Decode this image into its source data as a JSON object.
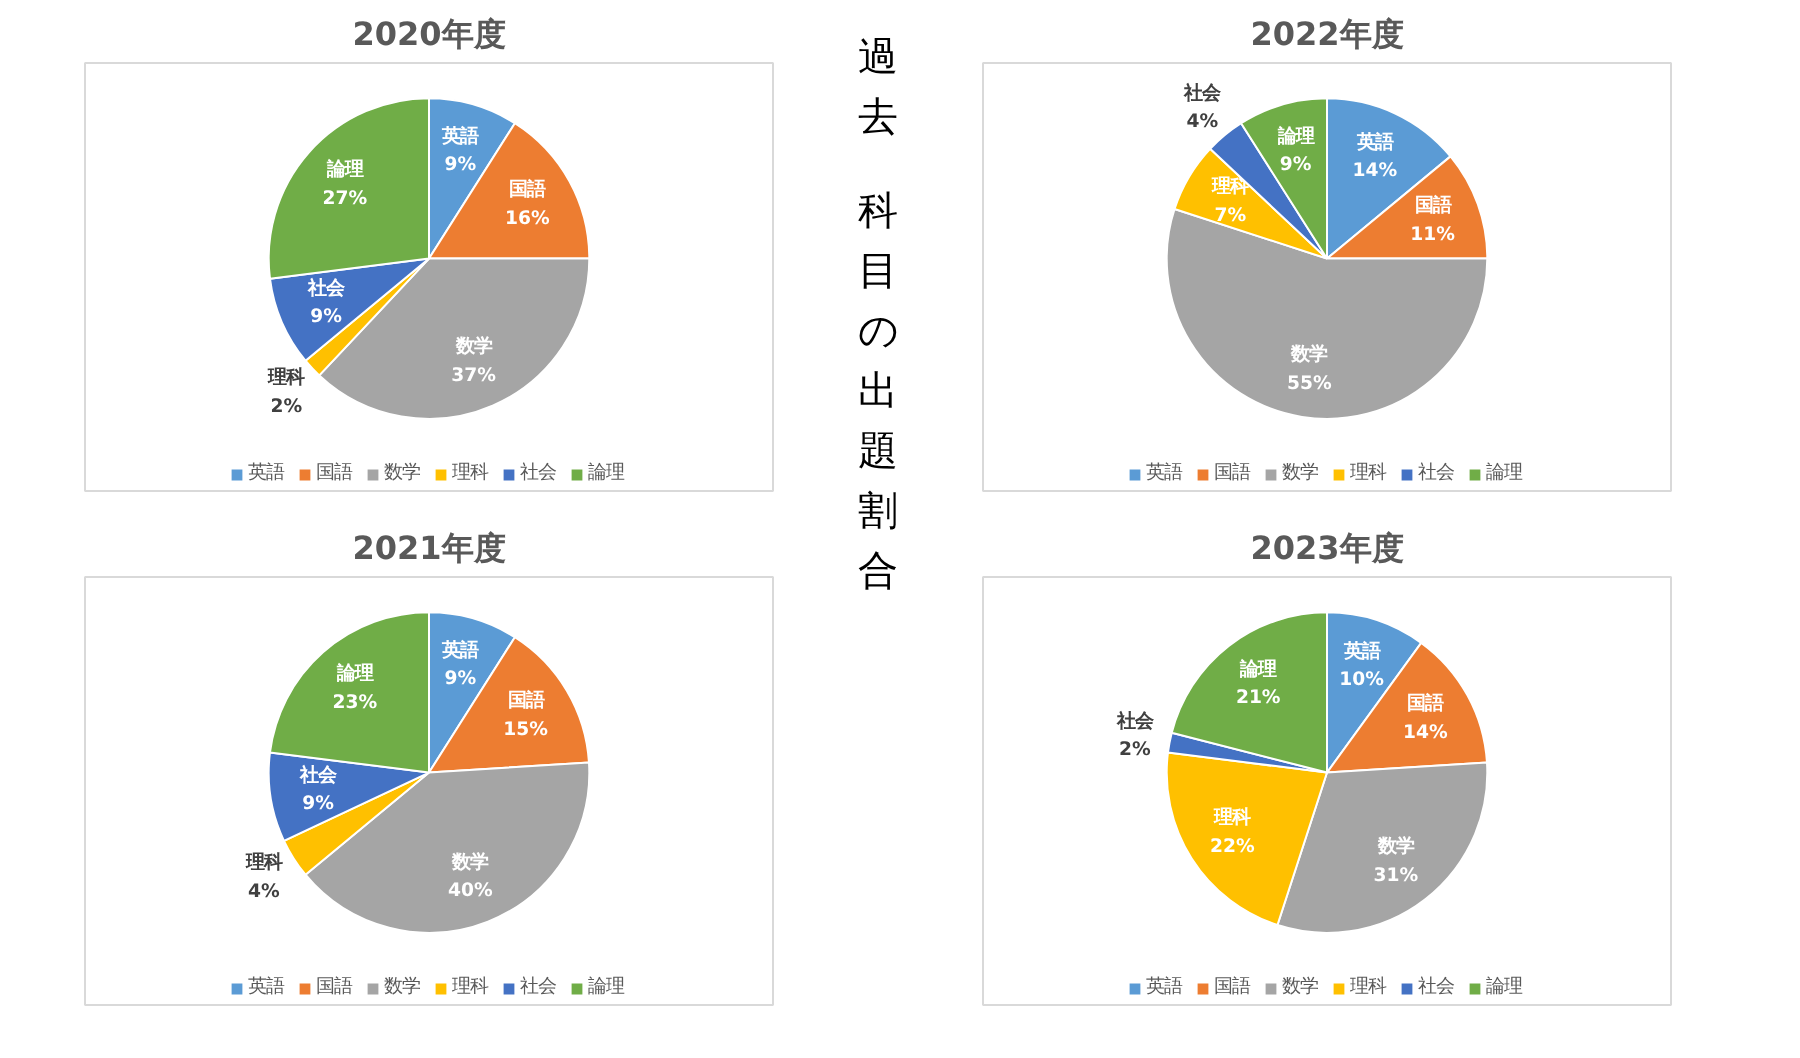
{
  "chart_data": [
    {
      "type": "pie",
      "title": "2020年度",
      "categories": [
        "英語",
        "国語",
        "数学",
        "理科",
        "社会",
        "論理"
      ],
      "values": [
        9,
        16,
        37,
        2,
        9,
        27
      ],
      "value_labels": [
        "9%",
        "16%",
        "37%",
        "2%",
        "9%",
        "27%"
      ],
      "colors": [
        "#5b9bd5",
        "#ed7d31",
        "#a5a5a5",
        "#ffc000",
        "#4472c4",
        "#70ad47"
      ],
      "legend": "bottom"
    },
    {
      "type": "other",
      "title": "過去",
      "subtitle": "科目の出題割合"
    },
    {
      "type": "pie",
      "title": "2022年度",
      "categories": [
        "英語",
        "国語",
        "数学",
        "理科",
        "社会",
        "論理"
      ],
      "values": [
        14,
        11,
        55,
        7,
        4,
        9
      ],
      "value_labels": [
        "14%",
        "11%",
        "55%",
        "7%",
        "4%",
        "9%"
      ],
      "colors": [
        "#5b9bd5",
        "#ed7d31",
        "#a5a5a5",
        "#ffc000",
        "#4472c4",
        "#70ad47"
      ],
      "legend": "bottom"
    },
    {
      "type": "pie",
      "title": "2021年度",
      "categories": [
        "英語",
        "国語",
        "数学",
        "理科",
        "社会",
        "論理"
      ],
      "values": [
        9,
        15,
        40,
        4,
        9,
        23
      ],
      "value_labels": [
        "9%",
        "15%",
        "40%",
        "4%",
        "9%",
        "23%"
      ],
      "colors": [
        "#5b9bd5",
        "#ed7d31",
        "#a5a5a5",
        "#ffc000",
        "#4472c4",
        "#70ad47"
      ],
      "legend": "bottom"
    },
    {
      "type": "pie",
      "title": "2023年度",
      "categories": [
        "英語",
        "国語",
        "数学",
        "理科",
        "社会",
        "論理"
      ],
      "values": [
        10,
        14,
        31,
        22,
        2,
        21
      ],
      "value_labels": [
        "10%",
        "14%",
        "31%",
        "22%",
        "2%",
        "21%"
      ],
      "colors": [
        "#5b9bd5",
        "#ed7d31",
        "#a5a5a5",
        "#ffc000",
        "#4472c4",
        "#70ad47"
      ],
      "legend": "bottom"
    }
  ]
}
